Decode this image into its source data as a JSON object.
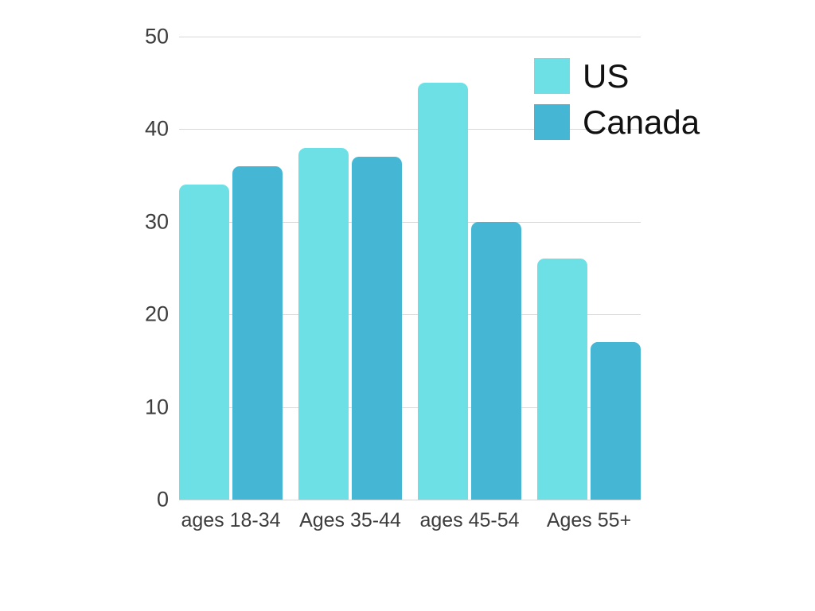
{
  "chart_data": {
    "type": "bar",
    "title": "",
    "xlabel": "",
    "ylabel": "",
    "categories": [
      "ages 18-34",
      "Ages 35-44",
      "ages 45-54",
      "Ages 55+"
    ],
    "series": [
      {
        "name": "US",
        "color": "#6CE0E5",
        "values": [
          34,
          38,
          45,
          26
        ]
      },
      {
        "name": "Canada",
        "color": "#45B7D4",
        "values": [
          36,
          37,
          30,
          17
        ]
      }
    ],
    "ylim": [
      0,
      50
    ],
    "yticks": [
      0,
      10,
      20,
      30,
      40,
      50
    ],
    "grid": true,
    "legend_position": "top-right"
  },
  "colors": {
    "background": "#FFFFFF",
    "gridline": "#D8D8D8",
    "axis_text": "#3D3D3D",
    "legend_text": "#111111"
  }
}
